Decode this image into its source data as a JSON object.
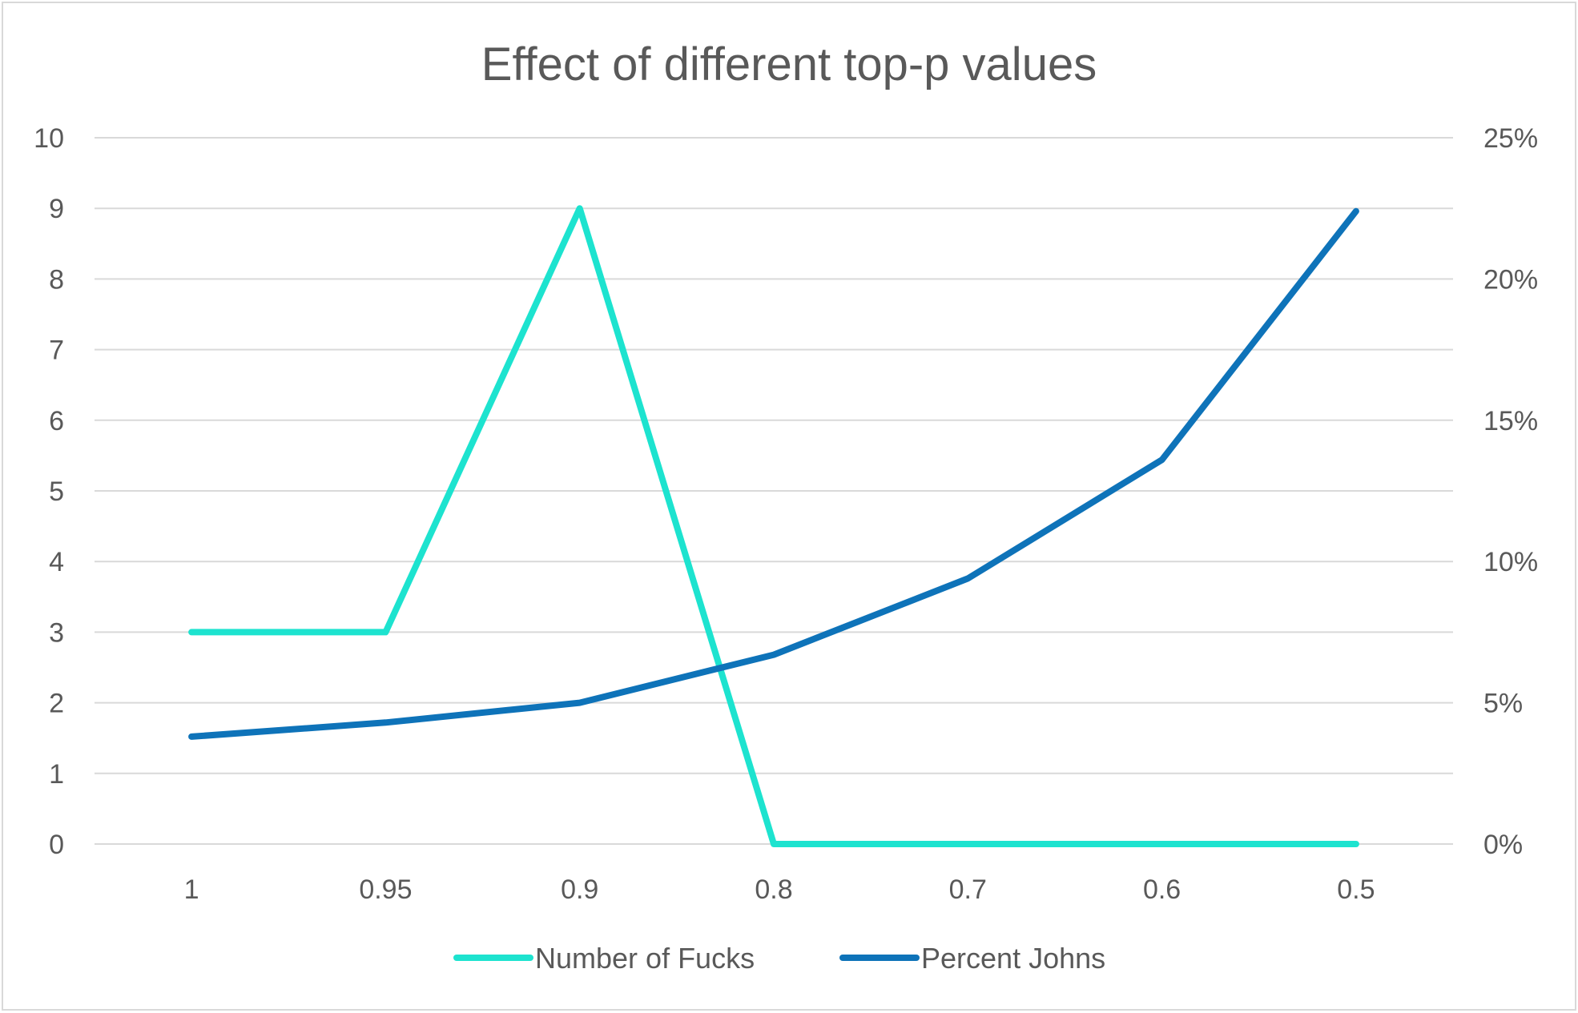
{
  "chart_data": {
    "type": "line",
    "title": "Effect of different top-p values",
    "categories": [
      "1",
      "0.95",
      "0.9",
      "0.8",
      "0.7",
      "0.6",
      "0.5"
    ],
    "y_left": {
      "min": 0,
      "max": 10,
      "step": 1,
      "ticks": [
        "0",
        "1",
        "2",
        "3",
        "4",
        "5",
        "6",
        "7",
        "8",
        "9",
        "10"
      ]
    },
    "y_right": {
      "min": 0,
      "max": 0.25,
      "step": 0.05,
      "ticks": [
        "0%",
        "5%",
        "10%",
        "15%",
        "20%",
        "25%"
      ]
    },
    "grid": true,
    "legend_position": "bottom",
    "series": [
      {
        "name": "Number of Fucks",
        "axis": "left",
        "color": "#1de3cf",
        "values": [
          3,
          3,
          9,
          0,
          0,
          0,
          0
        ]
      },
      {
        "name": "Percent Johns",
        "axis": "right",
        "color": "#0e73b9",
        "values": [
          0.038,
          0.043,
          0.05,
          0.067,
          0.094,
          0.136,
          0.224
        ]
      }
    ]
  }
}
